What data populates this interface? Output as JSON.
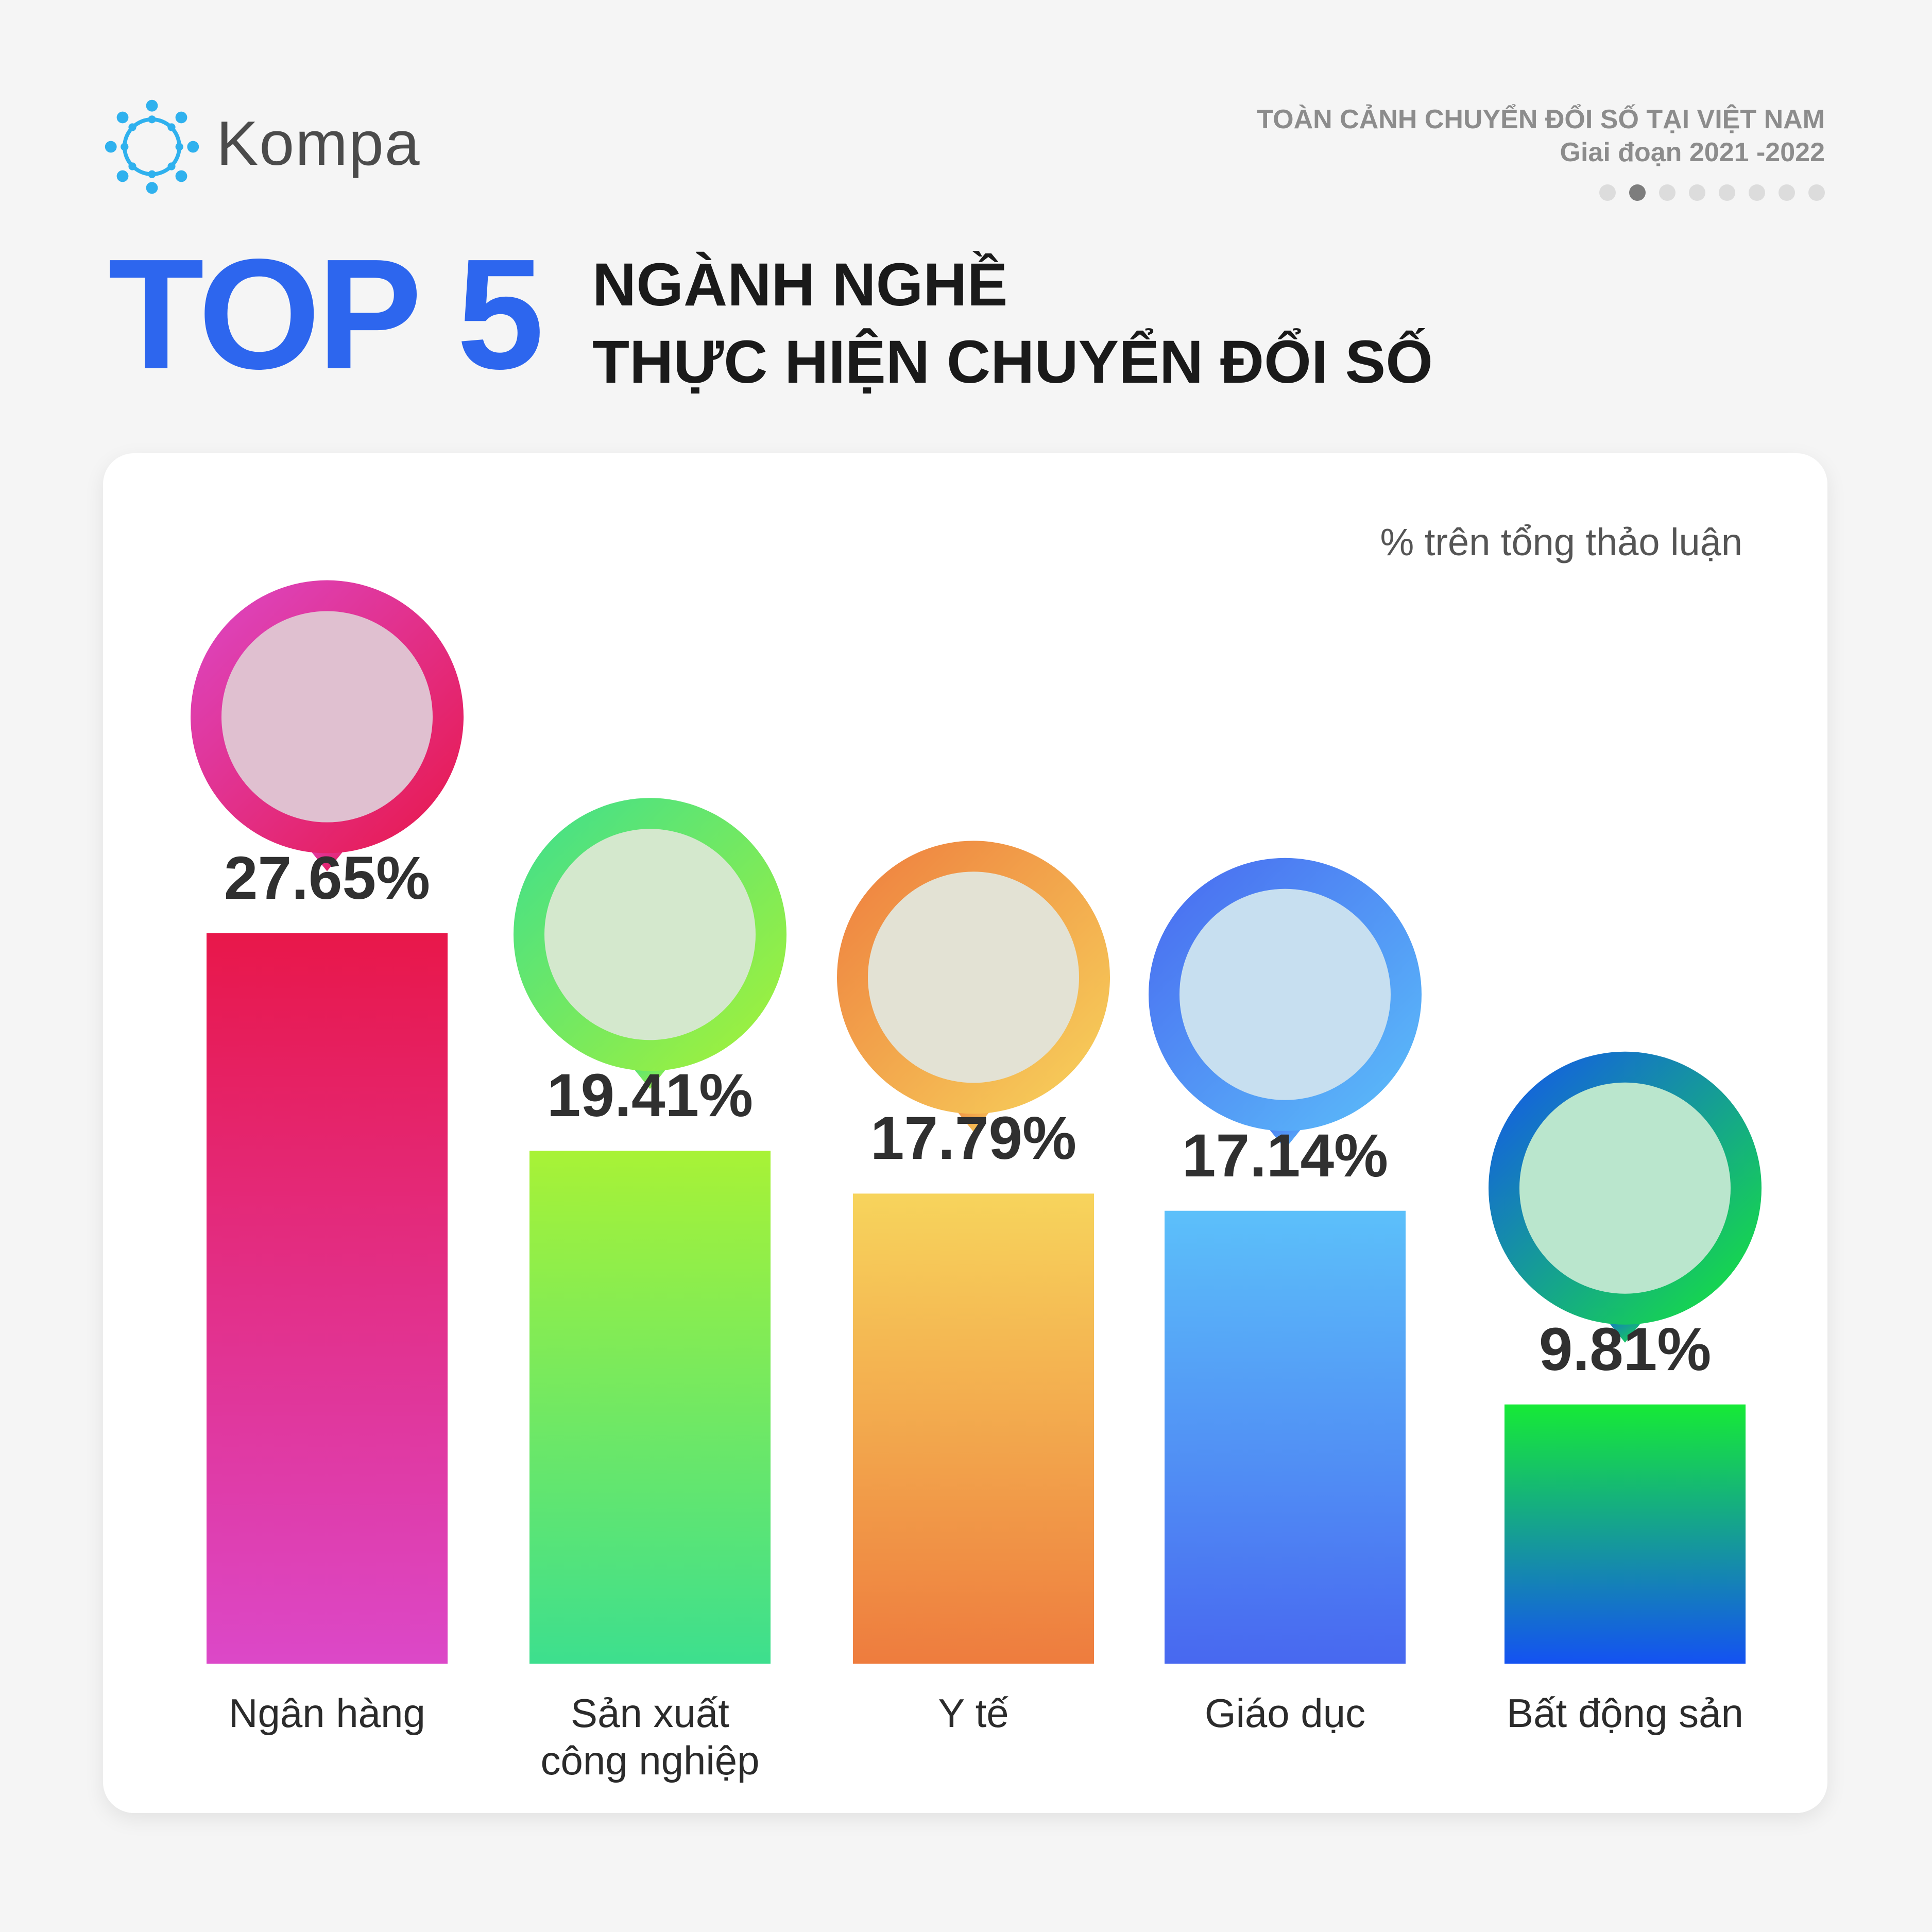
{
  "brand": {
    "name": "Kompa",
    "color": "#2fb1ee"
  },
  "series_header": {
    "title": "TOÀN CẢNH CHUYỂN ĐỔI SỐ TẠI VIỆT NAM",
    "period": "Giai đoạn 2021 -2022",
    "pages": 8,
    "current_page": 2
  },
  "headline": {
    "big": "TOP 5",
    "line1": "NGÀNH NGHỀ",
    "line2": "THỰC HIỆN CHUYỂN ĐỔI SỐ"
  },
  "chart_data": {
    "type": "bar",
    "unit_note": "% trên tổng thảo luận",
    "categories": [
      {
        "label": "Ngân hàng",
        "value": 27.65,
        "value_label": "27.65%",
        "icon": "bank-building-photo",
        "color_top": "#e8174a",
        "color_bottom": "#dc48c8"
      },
      {
        "label": "Sản xuất\ncông nghiệp",
        "value": 19.41,
        "value_label": "19.41%",
        "icon": "industrial-tablet-photo",
        "color_top": "#a8f236",
        "color_bottom": "#3ddf8e"
      },
      {
        "label": "Y tế",
        "value": 17.79,
        "value_label": "17.79%",
        "icon": "medical-lungs-photo",
        "color_top": "#f7d45c",
        "color_bottom": "#ee7c3e"
      },
      {
        "label": "Giáo dục",
        "value": 17.14,
        "value_label": "17.14%",
        "icon": "graduation-caps-photo",
        "color_top": "#5cc0fa",
        "color_bottom": "#4868f0"
      },
      {
        "label": "Bất động sản",
        "value": 9.81,
        "value_label": "9.81%",
        "icon": "city-skyline-photo",
        "color_top": "#16ea36",
        "color_bottom": "#1452f2"
      }
    ]
  }
}
